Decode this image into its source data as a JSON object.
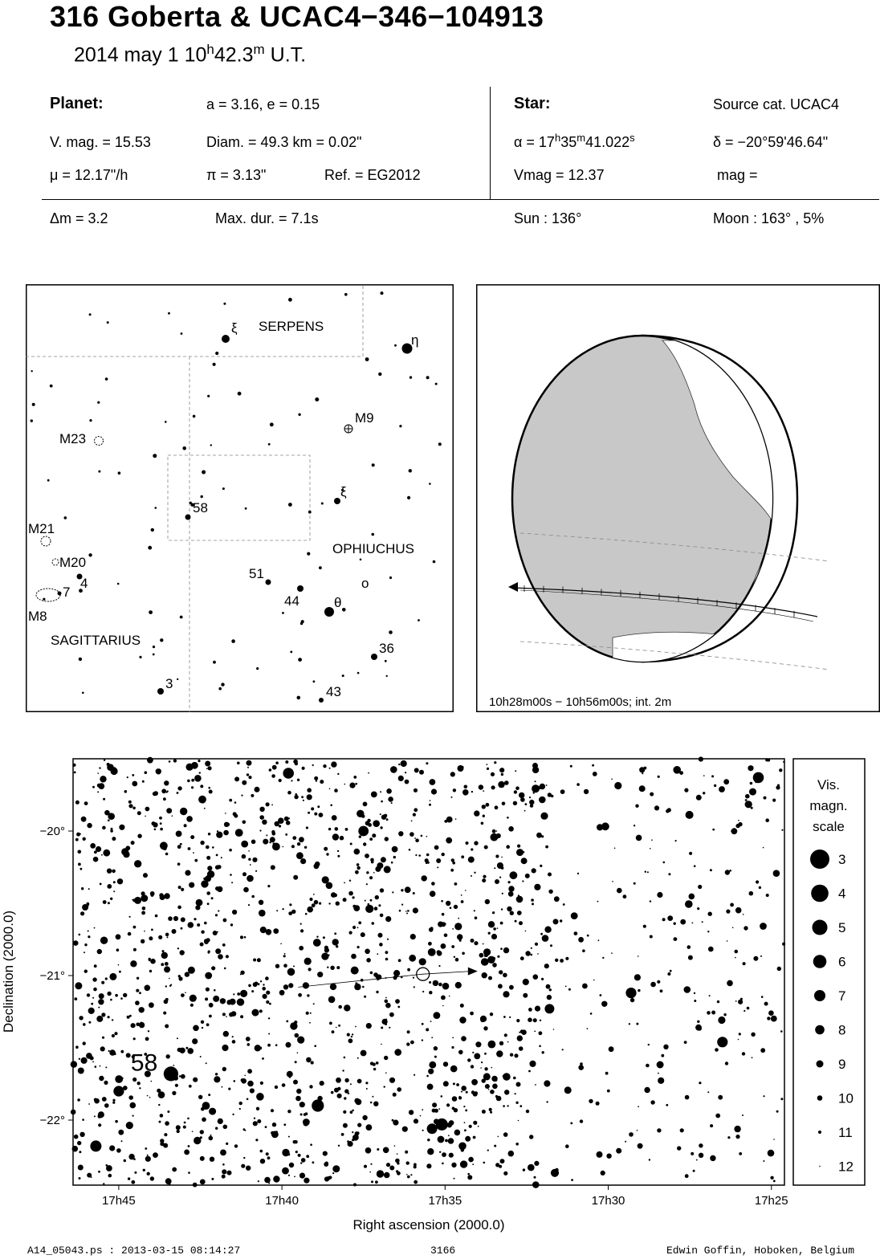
{
  "header": {
    "title": "316 Goberta  &  UCAC4−346−104913",
    "date": "2014 may  1  10",
    "hour_unit": "h",
    "minutes": "42.3",
    "minute_unit": "m",
    "time_suffix": " U.T."
  },
  "planet": {
    "label": "Planet:",
    "orbit": "a = 3.16, e = 0.15",
    "vmag": "V. mag. = 15.53",
    "diam": "Diam. = 49.3 km = 0.02\"",
    "mu": "μ =  12.17\"/h",
    "pi": "π =  3.13\"",
    "ref": "Ref. = EG2012"
  },
  "star": {
    "label": "Star:",
    "source": "Source cat.  UCAC4",
    "alpha_prefix": "α = 17",
    "alpha_h": "h",
    "alpha_m_val": "35",
    "alpha_m": "m",
    "alpha_s_val": "41.022",
    "alpha_s": "s",
    "delta": "δ = −20°59'46.64\"",
    "vmag": "Vmag = 12.37",
    "mag": "mag ="
  },
  "event": {
    "dm": "Δm = 3.2",
    "maxdur": "Max. dur. = 7.1s",
    "sun": "Sun : 136°",
    "moon": "Moon : 163° ,  5%"
  },
  "finder": {
    "labels": {
      "serpens": "SERPENS",
      "ophiuchus": "OPHIUCHUS",
      "sagittarius": "SAGITTARIUS",
      "xi_top": "ξ",
      "eta": "η",
      "m9": "M9",
      "m23": "M23",
      "xi_mid": "ξ",
      "s58": "58",
      "m21": "M21",
      "m20": "M20",
      "s4": "4",
      "s7": "7",
      "m8": "M8",
      "s51": "51",
      "s44": "44",
      "theta": "θ",
      "omicron": "o",
      "s36": "36",
      "s3": "3",
      "s43": "43"
    }
  },
  "globe": {
    "caption": "10h28m00s − 10h56m00s; int.  2m"
  },
  "chart_data": {
    "type": "scatter",
    "xlabel": "Right ascension (2000.0)",
    "ylabel": "Declination (2000.0)",
    "x_ticks": [
      "17h45",
      "17h40",
      "17h35",
      "17h30",
      "17h25"
    ],
    "x_tick_values_min": [
      45,
      40,
      35,
      30,
      25
    ],
    "y_ticks": [
      "−20°",
      "−21°",
      "−22°"
    ],
    "y_tick_values": [
      -20,
      -21,
      -22
    ],
    "xlim_min": [
      46.4,
      24.6
    ],
    "ylim": [
      -22.45,
      -19.5
    ],
    "highlighted_star": {
      "label": "58",
      "ra_min": 43.4,
      "dec": -21.68
    },
    "target_star": {
      "ra_min": 35.68,
      "dec": -20.99
    },
    "path": [
      [
        39.5,
        -21.08
      ],
      [
        35.68,
        -20.99
      ],
      [
        34.2,
        -20.97
      ]
    ],
    "legend": {
      "title": [
        "Vis.",
        "magn.",
        "scale"
      ],
      "magnitudes": [
        "3",
        "4",
        "5",
        "6",
        "7",
        "8",
        "9",
        "10",
        "11",
        "12"
      ]
    }
  },
  "footer": {
    "left": "A14_05043.ps : 2013-03-15 08:14:27",
    "center": "3166",
    "right": "Edwin Goffin, Hoboken, Belgium"
  }
}
